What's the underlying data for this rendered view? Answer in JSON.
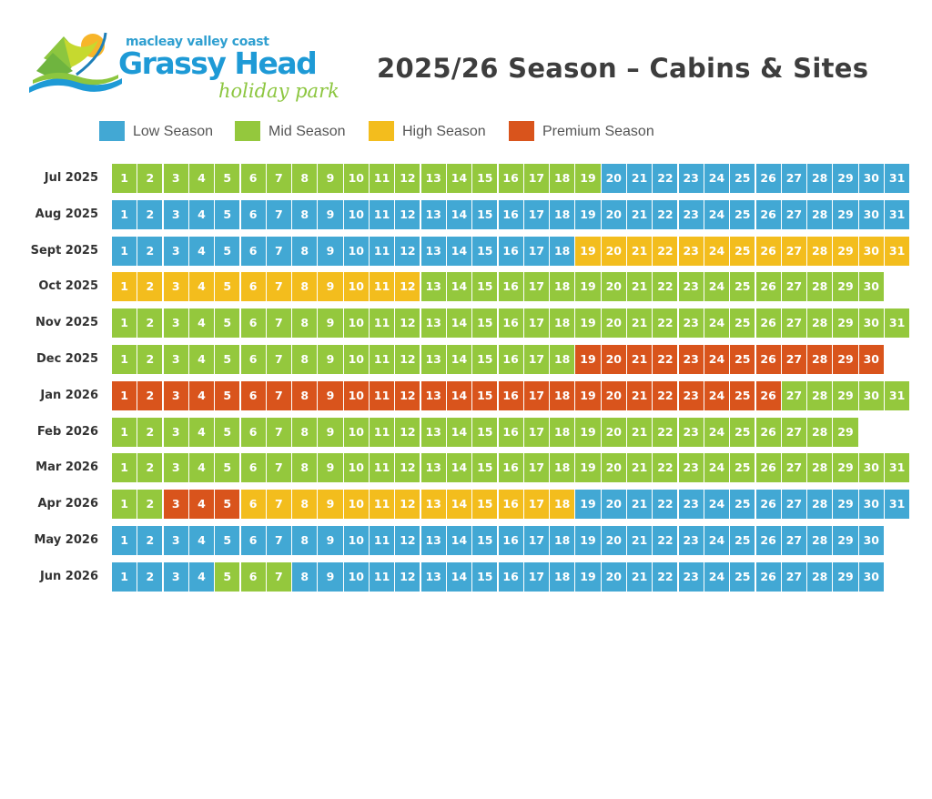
{
  "logo": {
    "line1": "macleay valley coast",
    "line2": "Grassy Head",
    "line3": "holiday park"
  },
  "title": "2025/26 Season – Cabins & Sites",
  "colors": {
    "low": "#42a8d4",
    "mid": "#94c83d",
    "high": "#f3bd1d",
    "premium": "#d9541c"
  },
  "legend": [
    {
      "key": "low",
      "label": "Low Season"
    },
    {
      "key": "mid",
      "label": "Mid Season"
    },
    {
      "key": "high",
      "label": "High Season"
    },
    {
      "key": "premium",
      "label": "Premium Season"
    }
  ],
  "months": [
    {
      "label": "Jul 2025",
      "days": 31,
      "ranges": [
        [
          1,
          19,
          "mid"
        ],
        [
          20,
          31,
          "low"
        ]
      ]
    },
    {
      "label": "Aug 2025",
      "days": 31,
      "ranges": [
        [
          1,
          31,
          "low"
        ]
      ]
    },
    {
      "label": "Sept 2025",
      "days": 31,
      "ranges": [
        [
          1,
          18,
          "low"
        ],
        [
          19,
          31,
          "high"
        ]
      ]
    },
    {
      "label": "Oct 2025",
      "days": 30,
      "ranges": [
        [
          1,
          12,
          "high"
        ],
        [
          13,
          30,
          "mid"
        ]
      ]
    },
    {
      "label": "Nov 2025",
      "days": 31,
      "ranges": [
        [
          1,
          31,
          "mid"
        ]
      ]
    },
    {
      "label": "Dec 2025",
      "days": 30,
      "ranges": [
        [
          1,
          18,
          "mid"
        ],
        [
          19,
          30,
          "premium"
        ]
      ]
    },
    {
      "label": "Jan 2026",
      "days": 31,
      "ranges": [
        [
          1,
          26,
          "premium"
        ],
        [
          27,
          31,
          "mid"
        ]
      ]
    },
    {
      "label": "Feb 2026",
      "days": 29,
      "ranges": [
        [
          1,
          29,
          "mid"
        ]
      ]
    },
    {
      "label": "Mar 2026",
      "days": 31,
      "ranges": [
        [
          1,
          31,
          "mid"
        ]
      ]
    },
    {
      "label": "Apr 2026",
      "days": 31,
      "ranges": [
        [
          1,
          2,
          "mid"
        ],
        [
          3,
          5,
          "premium"
        ],
        [
          6,
          18,
          "high"
        ],
        [
          19,
          31,
          "low"
        ]
      ]
    },
    {
      "label": "May 2026",
      "days": 30,
      "ranges": [
        [
          1,
          30,
          "low"
        ]
      ]
    },
    {
      "label": "Jun 2026",
      "days": 30,
      "ranges": [
        [
          1,
          4,
          "low"
        ],
        [
          5,
          7,
          "mid"
        ],
        [
          8,
          30,
          "low"
        ]
      ]
    }
  ]
}
